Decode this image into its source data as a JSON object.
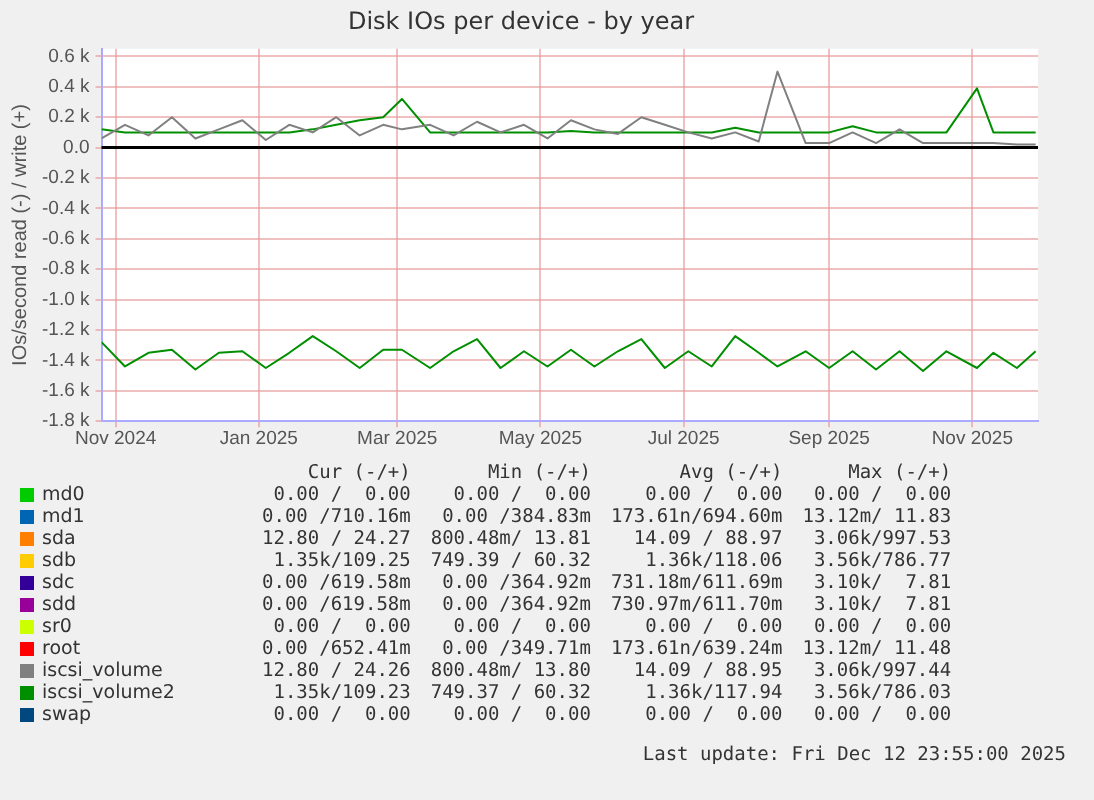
{
  "chart_data": {
    "type": "line",
    "title": "Disk IOs per device - by year",
    "ylabel": "IOs/second read (-) / write (+)",
    "x": [
      "2024-11-09",
      "2024-11-19",
      "2024-11-29",
      "2024-12-09",
      "2024-12-19",
      "2024-12-29",
      "2025-01-08",
      "2025-01-18",
      "2025-01-28",
      "2025-02-07",
      "2025-02-17",
      "2025-02-27",
      "2025-03-09",
      "2025-03-17",
      "2025-03-29",
      "2025-04-08",
      "2025-04-18",
      "2025-04-28",
      "2025-05-08",
      "2025-05-18",
      "2025-05-28",
      "2025-06-07",
      "2025-06-17",
      "2025-06-27",
      "2025-07-07",
      "2025-07-17",
      "2025-07-27",
      "2025-08-06",
      "2025-08-16",
      "2025-08-24",
      "2025-09-05",
      "2025-09-15",
      "2025-09-25",
      "2025-10-05",
      "2025-10-15",
      "2025-10-25",
      "2025-11-04",
      "2025-11-17",
      "2025-11-24",
      "2025-12-04",
      "2025-12-12"
    ],
    "xlim": [
      "2024-11-09",
      "2025-12-13"
    ],
    "xticks": [
      {
        "value": "2024-11-15",
        "label": "Nov 2024"
      },
      {
        "value": "2025-01-15",
        "label": "Jan 2025"
      },
      {
        "value": "2025-03-15",
        "label": "Mar 2025"
      },
      {
        "value": "2025-05-15",
        "label": "May 2025"
      },
      {
        "value": "2025-07-15",
        "label": "Jul 2025"
      },
      {
        "value": "2025-09-15",
        "label": "Sep 2025"
      },
      {
        "value": "2025-11-15",
        "label": "Nov 2025"
      }
    ],
    "ylim": [
      -1800,
      650
    ],
    "yticks": [
      {
        "value": -1800,
        "label": "-1.8 k"
      },
      {
        "value": -1600,
        "label": "-1.6 k"
      },
      {
        "value": -1400,
        "label": "-1.4 k"
      },
      {
        "value": -1200,
        "label": "-1.2 k"
      },
      {
        "value": -1000,
        "label": "-1.0 k"
      },
      {
        "value": -800,
        "label": "-0.8 k"
      },
      {
        "value": -600,
        "label": "-0.6 k"
      },
      {
        "value": -400,
        "label": "-0.4 k"
      },
      {
        "value": -200,
        "label": "-0.2 k"
      },
      {
        "value": 0,
        "label": "0.0"
      },
      {
        "value": 200,
        "label": "0.2 k"
      },
      {
        "value": 400,
        "label": "0.4 k"
      },
      {
        "value": 600,
        "label": "0.6 k"
      }
    ],
    "grid": true,
    "legend": "bottom",
    "marker": "none",
    "series": [
      {
        "name": "md0",
        "color": "#00cc00",
        "values": [
          null,
          null,
          null,
          null,
          null,
          null,
          null,
          null,
          null,
          null,
          null,
          null,
          null,
          null,
          null,
          null,
          null,
          null,
          null,
          null,
          null,
          null,
          null,
          null,
          null,
          null,
          null,
          null,
          null,
          null,
          null,
          null,
          null,
          null,
          null,
          null,
          null,
          null,
          null,
          null,
          null
        ]
      },
      {
        "name": "md1",
        "color": "#0066b3",
        "values": [
          null,
          null,
          null,
          null,
          null,
          null,
          null,
          null,
          null,
          null,
          null,
          null,
          null,
          null,
          null,
          null,
          null,
          null,
          null,
          null,
          null,
          null,
          null,
          null,
          null,
          null,
          null,
          null,
          null,
          null,
          null,
          null,
          null,
          null,
          null,
          null,
          null,
          null,
          null,
          null,
          null
        ]
      },
      {
        "name": "sda",
        "color": "#ff8000",
        "values": [
          null,
          null,
          null,
          null,
          null,
          null,
          null,
          null,
          null,
          null,
          null,
          null,
          null,
          null,
          null,
          null,
          null,
          null,
          null,
          null,
          null,
          null,
          null,
          null,
          null,
          null,
          null,
          null,
          null,
          null,
          null,
          null,
          null,
          null,
          null,
          null,
          null,
          null,
          null,
          null,
          null
        ]
      },
      {
        "name": "sdb",
        "color": "#ffcc00",
        "values": [
          null,
          null,
          null,
          null,
          null,
          null,
          null,
          null,
          null,
          null,
          null,
          null,
          null,
          null,
          null,
          null,
          null,
          null,
          null,
          null,
          null,
          null,
          null,
          null,
          null,
          null,
          null,
          null,
          null,
          null,
          null,
          null,
          null,
          null,
          null,
          null,
          null,
          null,
          null,
          null,
          null
        ]
      },
      {
        "name": "sdc",
        "color": "#330099",
        "values": [
          null,
          null,
          null,
          null,
          null,
          null,
          null,
          null,
          null,
          null,
          null,
          null,
          null,
          null,
          null,
          null,
          null,
          null,
          null,
          null,
          null,
          null,
          null,
          null,
          null,
          null,
          null,
          null,
          null,
          null,
          null,
          null,
          null,
          null,
          null,
          null,
          null,
          null,
          null,
          null,
          null
        ]
      },
      {
        "name": "sdd",
        "color": "#990099",
        "values": [
          null,
          null,
          null,
          null,
          null,
          null,
          null,
          null,
          null,
          null,
          null,
          null,
          null,
          null,
          null,
          null,
          null,
          null,
          null,
          null,
          null,
          null,
          null,
          null,
          null,
          null,
          null,
          null,
          null,
          null,
          null,
          null,
          null,
          null,
          null,
          null,
          null,
          null,
          null,
          null,
          null
        ]
      },
      {
        "name": "sr0",
        "color": "#ccff00",
        "values": [
          null,
          null,
          null,
          null,
          null,
          null,
          null,
          null,
          null,
          null,
          null,
          null,
          null,
          null,
          null,
          null,
          null,
          null,
          null,
          null,
          null,
          null,
          null,
          null,
          null,
          null,
          null,
          null,
          null,
          null,
          null,
          null,
          null,
          null,
          null,
          null,
          null,
          null,
          null,
          null,
          null
        ]
      },
      {
        "name": "root",
        "color": "#ff0000",
        "values": [
          null,
          null,
          null,
          null,
          null,
          null,
          null,
          null,
          null,
          null,
          null,
          null,
          null,
          null,
          null,
          null,
          null,
          null,
          null,
          null,
          null,
          null,
          null,
          null,
          null,
          null,
          null,
          null,
          null,
          null,
          null,
          null,
          null,
          null,
          null,
          null,
          null,
          null,
          null,
          null,
          null
        ]
      },
      {
        "name": "iscsi_volume",
        "color": "#808080",
        "values": [
          60,
          150,
          80,
          200,
          60,
          120,
          180,
          50,
          150,
          100,
          200,
          80,
          150,
          120,
          150,
          80,
          170,
          100,
          150,
          60,
          180,
          120,
          90,
          200,
          150,
          100,
          60,
          100,
          40,
          500,
          30,
          30,
          100,
          30,
          120,
          30,
          30,
          30,
          30,
          20,
          20
        ]
      },
      {
        "name": "iscsi_volume2",
        "color": "#008f00",
        "values": [
          120,
          100,
          100,
          100,
          100,
          100,
          100,
          100,
          100,
          120,
          150,
          180,
          200,
          320,
          100,
          100,
          100,
          100,
          100,
          100,
          110,
          100,
          100,
          100,
          100,
          100,
          100,
          130,
          100,
          100,
          100,
          100,
          140,
          100,
          100,
          100,
          100,
          390,
          100,
          100,
          100
        ]
      },
      {
        "name": "swap",
        "color": "#00487d",
        "values": [
          null,
          null,
          null,
          null,
          null,
          null,
          null,
          null,
          null,
          null,
          null,
          null,
          null,
          null,
          null,
          null,
          null,
          null,
          null,
          null,
          null,
          null,
          null,
          null,
          null,
          null,
          null,
          null,
          null,
          null,
          null,
          null,
          null,
          null,
          null,
          null,
          null,
          null,
          null,
          null,
          null
        ]
      },
      {
        "color": "#008f00",
        "values": [
          -1280,
          -1440,
          -1350,
          -1330,
          -1460,
          -1350,
          -1340,
          -1450,
          -1350,
          -1240,
          -1340,
          -1450,
          -1330,
          -1330,
          -1450,
          -1340,
          -1260,
          -1450,
          -1340,
          -1440,
          -1330,
          -1440,
          -1340,
          -1260,
          -1450,
          -1340,
          -1440,
          -1240,
          -1350,
          -1440,
          -1340,
          -1450,
          -1340,
          -1460,
          -1340,
          -1470,
          -1340,
          -1450,
          -1350,
          -1450,
          -1340
        ]
      }
    ],
    "annotations": [
      "Cur (-/+)",
      "Min (-/+)",
      "Avg (-/+)",
      "Max (-/+)",
      "0.00 /  0.00",
      "0.00 /  0.00",
      "0.00 /  0.00",
      "0.00 /  0.00",
      "0.00 /710.16m",
      "0.00 /384.83m",
      "173.61n/694.60m",
      "13.12m/ 11.83",
      "12.80 / 24.27",
      "800.48m/ 13.81",
      "14.09 / 88.97",
      "3.06k/997.53",
      "1.35k/109.25",
      "749.39 / 60.32",
      "1.36k/118.06",
      "3.56k/786.77",
      "0.00 /619.58m",
      "0.00 /364.92m",
      "731.18m/611.69m",
      "3.10k/  7.81",
      "0.00 /619.58m",
      "0.00 /364.92m",
      "730.97m/611.70m",
      "3.10k/  7.81",
      "0.00 /  0.00",
      "0.00 /  0.00",
      "0.00 /  0.00",
      "0.00 /  0.00",
      "0.00 /652.41m",
      "0.00 /349.71m",
      "173.61n/639.24m",
      "13.12m/ 11.48",
      "12.80 / 24.26",
      "800.48m/ 13.80",
      "14.09 / 88.95",
      "3.06k/997.44",
      "1.35k/109.23",
      "749.37 / 60.32",
      "1.36k/117.94",
      "3.56k/786.03",
      "0.00 /  0.00",
      "0.00 /  0.00",
      "0.00 /  0.00",
      "0.00 /  0.00",
      "Last update: Fri Dec 12 23:55:00 2025"
    ]
  }
}
